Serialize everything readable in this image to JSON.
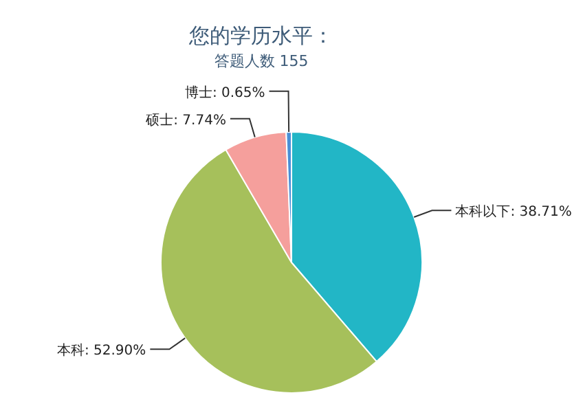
{
  "chart_data": {
    "type": "pie",
    "title": "您的学历水平：",
    "subtitle": "答题人数 155",
    "categories": [
      "本科以下",
      "本科",
      "硕士",
      "博士"
    ],
    "values": [
      38.71,
      52.9,
      7.74,
      0.65
    ],
    "value_labels": [
      "38.71%",
      "52.90%",
      "7.74%",
      "0.65%"
    ],
    "colors": [
      "#22b6c6",
      "#a6c05b",
      "#f59f9c",
      "#4a8fd6"
    ]
  }
}
